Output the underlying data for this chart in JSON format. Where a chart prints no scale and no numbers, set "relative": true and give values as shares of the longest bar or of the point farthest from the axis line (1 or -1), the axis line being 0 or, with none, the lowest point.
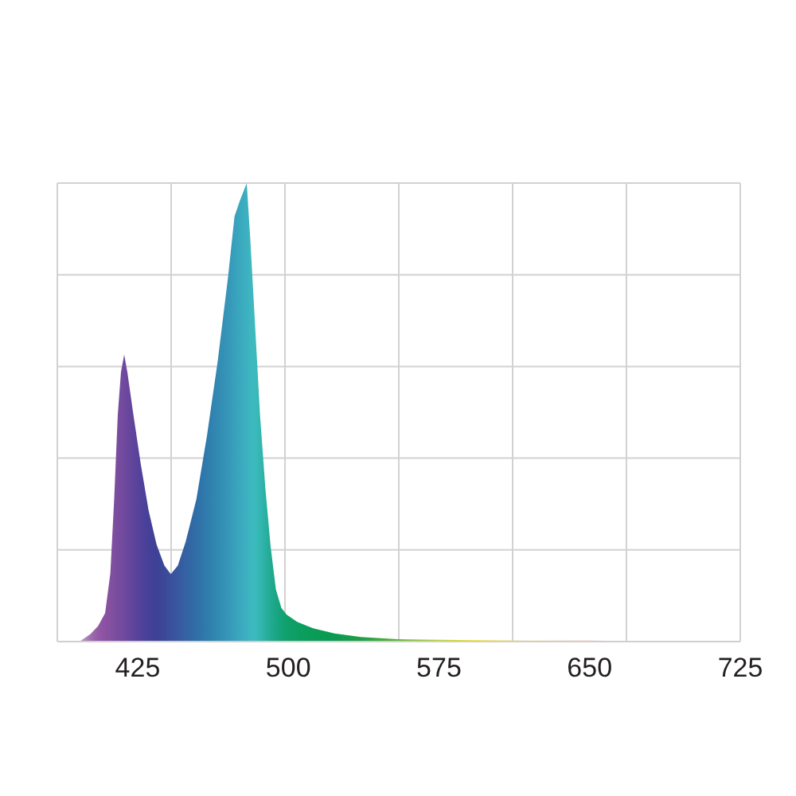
{
  "chart_data": {
    "type": "area",
    "relative": true,
    "grid": true,
    "x": [
      385,
      396,
      401.4,
      405.3,
      408.8,
      411.4,
      413.3,
      415.1,
      416.7,
      418.3,
      419.9,
      422.5,
      426.4,
      430.4,
      434.4,
      438.3,
      441.5,
      445,
      448.9,
      454.2,
      459.5,
      464.8,
      470,
      473.2,
      475.9,
      479.3,
      481.1,
      483.3,
      485.9,
      488.6,
      491.2,
      493.8,
      496.5,
      499.1,
      504.4,
      512.3,
      522.9,
      536.1,
      554.6,
      575,
      594,
      618,
      650,
      670,
      672
    ],
    "values": [
      0,
      0,
      0.016,
      0.034,
      0.062,
      0.149,
      0.31,
      0.495,
      0.588,
      0.626,
      0.587,
      0.506,
      0.391,
      0.287,
      0.212,
      0.166,
      0.147,
      0.166,
      0.218,
      0.31,
      0.449,
      0.61,
      0.795,
      0.927,
      0.962,
      1,
      0.875,
      0.702,
      0.495,
      0.333,
      0.207,
      0.114,
      0.074,
      0.059,
      0.043,
      0.029,
      0.018,
      0.01,
      0.005,
      0.004,
      0.003,
      0.002,
      0.002,
      0.001,
      0
    ],
    "colors": [
      "#d8c0dc",
      "#c8a0cc",
      "#a070b0",
      "#9458a6",
      "#8a52a2",
      "#8450a0",
      "#7e4ea0",
      "#784c9f",
      "#744b9e",
      "#70499e",
      "#6a479d",
      "#60459c",
      "#52429a",
      "#464098",
      "#3e4196",
      "#3b4898",
      "#3a509c",
      "#38589f",
      "#3462a2",
      "#306ea7",
      "#2e7cac",
      "#328ab2",
      "#3696b8",
      "#38a0bc",
      "#3aa8be",
      "#3cb0c0",
      "#3eb6c0",
      "#3cbabe",
      "#34b6b2",
      "#2ab0a2",
      "#22aa92",
      "#1aa684",
      "#14a276",
      "#10a06c",
      "#0c9e62",
      "#0a9c58",
      "#0a9a50",
      "#1e9e48",
      "#60b438",
      "#b8d228",
      "#f0e000",
      "#f2c860",
      "#f2a0a0",
      "#f4b8c4",
      "#f4c8d0"
    ],
    "xlim": [
      385,
      725
    ],
    "xticks": [
      425,
      {
        "value": 441.67,
        "label": null
      },
      {
        "value": 498.33,
        "label": null
      },
      500,
      {
        "value": 555,
        "label": null
      },
      575,
      {
        "value": 611.67,
        "label": null
      },
      650,
      {
        "value": 668.33,
        "label": null
      },
      725
    ]
  }
}
